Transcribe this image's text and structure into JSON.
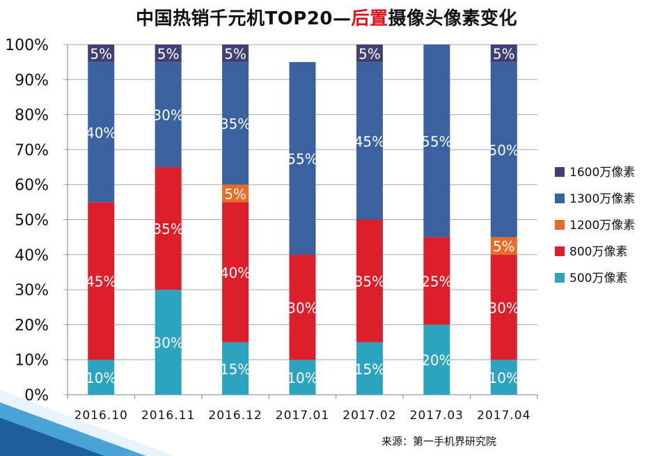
{
  "title": {
    "before": "中国热销千元机TOP20—",
    "highlight": "后置",
    "after": "摄像头像素变化"
  },
  "source": "来源：第一手机界研究院",
  "colors": {
    "title_highlight": "#e0121b",
    "grid": "#a6a6a6",
    "axis_text": "#111111",
    "label_text": "#ffffff"
  },
  "chart_data": {
    "type": "bar",
    "stacked": true,
    "categories": [
      "2016.10",
      "2016.11",
      "2016.12",
      "2017.01",
      "2017.02",
      "2017.03",
      "2017.04"
    ],
    "y_ticks": [
      "0%",
      "10%",
      "20%",
      "30%",
      "40%",
      "50%",
      "60%",
      "70%",
      "80%",
      "90%",
      "100%"
    ],
    "ylim": [
      0,
      100
    ],
    "grid": true,
    "legend_position": "right",
    "series": [
      {
        "name": "500万像素",
        "color": "#2ea3c0",
        "values": [
          10,
          30,
          15,
          10,
          15,
          20,
          10
        ],
        "labels": [
          "10%",
          "30%",
          "15%",
          "10%",
          "15%",
          "20%",
          "10%"
        ]
      },
      {
        "name": "800万像素",
        "color": "#dc1f2b",
        "values": [
          45,
          35,
          40,
          30,
          35,
          25,
          30
        ],
        "labels": [
          "45%",
          "35%",
          "40%",
          "30%",
          "35%",
          "25%",
          "30%"
        ]
      },
      {
        "name": "1200万像素",
        "color": "#ec6b24",
        "values": [
          0,
          0,
          5,
          0,
          0,
          0,
          5
        ],
        "labels": [
          "",
          "",
          "5%",
          "",
          "",
          "",
          "5%"
        ]
      },
      {
        "name": "1300万像素",
        "color": "#3a62a0",
        "values": [
          40,
          30,
          35,
          55,
          45,
          55,
          50
        ],
        "labels": [
          "40%",
          "30%",
          "35%",
          "55%",
          "45%",
          "55%",
          "50%"
        ]
      },
      {
        "name": "1600万像素",
        "color": "#423f74",
        "values": [
          5,
          5,
          5,
          0,
          5,
          0,
          5
        ],
        "labels": [
          "5%",
          "5%",
          "5%",
          "",
          "5%",
          "",
          "5%"
        ]
      }
    ]
  }
}
